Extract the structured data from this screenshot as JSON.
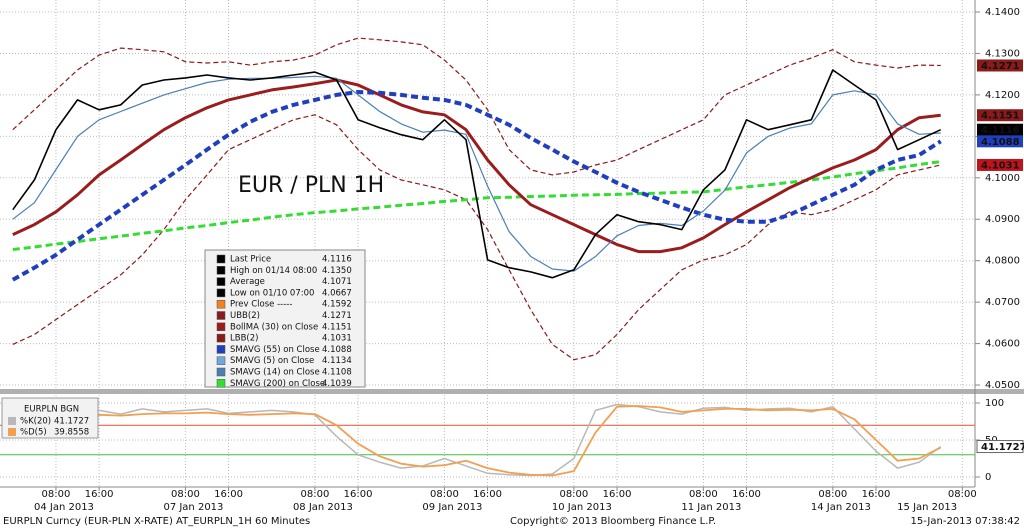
{
  "chart_data": [
    {
      "type": "line",
      "annotation": "EUR / PLN 1H",
      "annotation_color": "#e0201c",
      "categories": [
        null,
        null,
        null,
        null,
        null,
        null,
        null,
        null,
        null,
        null,
        null,
        null,
        null,
        null,
        null,
        null,
        null,
        null,
        null,
        null,
        null,
        null,
        null,
        null,
        null,
        null,
        null,
        null,
        null,
        null,
        null,
        null,
        null,
        null,
        null,
        null,
        null,
        null,
        null,
        null,
        null,
        null,
        null,
        null
      ],
      "series": [
        {
          "color": "#8b1a1a",
          "dash": true,
          "width": 1.2,
          "values": [
            4.1116,
            4.1164,
            4.1212,
            4.126,
            4.1296,
            4.1313,
            4.1309,
            4.1304,
            4.128,
            4.1277,
            4.128,
            4.1272,
            4.128,
            4.1284,
            4.1296,
            4.1321,
            4.1337,
            4.1333,
            4.1328,
            4.1321,
            4.1284,
            4.1236,
            4.1164,
            4.1068,
            4.1019,
            4.1007,
            4.1014,
            4.1031,
            4.1043,
            4.1068,
            4.1092,
            4.1116,
            4.114,
            4.12,
            4.1224,
            4.1248,
            4.1272,
            4.1289,
            4.1309,
            4.128,
            4.1272,
            4.1265,
            4.1272,
            4.1271
          ]
        },
        {
          "color": "#8b1a1a",
          "dash": true,
          "width": 1.2,
          "values": [
            4.0598,
            4.0622,
            4.0658,
            4.0694,
            4.073,
            4.0766,
            4.0814,
            4.0875,
            4.0947,
            4.1007,
            4.1068,
            4.1092,
            4.1116,
            4.114,
            4.1152,
            4.1128,
            4.1068,
            4.1019,
            4.0995,
            4.0983,
            4.0971,
            4.0947,
            4.0875,
            4.0778,
            4.0682,
            4.0598,
            4.0561,
            4.0573,
            4.0622,
            4.0682,
            4.073,
            4.0778,
            4.0802,
            4.0814,
            4.0839,
            4.0887,
            4.0918,
            4.0911,
            4.0923,
            4.0947,
            4.0971,
            4.1007,
            4.1019,
            4.1031
          ]
        },
        {
          "color": "#33dd33",
          "dash": true,
          "width": 3,
          "values": [
            4.0827,
            4.0833,
            4.084,
            4.0846,
            4.0853,
            4.0859,
            4.0866,
            4.0872,
            4.0879,
            4.0885,
            4.0892,
            4.0898,
            4.0905,
            4.0911,
            4.0916,
            4.092,
            4.0925,
            4.0929,
            4.0934,
            4.0938,
            4.0943,
            4.0947,
            4.0952,
            4.0953,
            4.0955,
            4.0956,
            4.0958,
            4.0959,
            4.096,
            4.0962,
            4.0963,
            4.0965,
            4.0966,
            4.0972,
            4.0978,
            4.0983,
            4.0989,
            4.0995,
            4.1002,
            4.101,
            4.1017,
            4.1024,
            4.1032,
            4.1039
          ]
        },
        {
          "color": "#9b1c1c",
          "dash": false,
          "width": 3,
          "values": [
            4.0863,
            4.0887,
            4.0918,
            4.0959,
            4.1007,
            4.1043,
            4.108,
            4.1116,
            4.1145,
            4.1169,
            4.1188,
            4.12,
            4.1212,
            4.1219,
            4.1227,
            4.1236,
            4.1224,
            4.12,
            4.1176,
            4.1159,
            4.1152,
            4.1116,
            4.1043,
            4.0983,
            4.0935,
            4.0911,
            4.0887,
            4.0863,
            4.0839,
            4.0822,
            4.0822,
            4.0831,
            4.0855,
            4.0887,
            4.0918,
            4.0947,
            4.0976,
            4.1,
            4.1024,
            4.1043,
            4.1068,
            4.1116,
            4.1145,
            4.1151
          ]
        },
        {
          "color": "#1f3fbf",
          "dash": true,
          "width": 4,
          "values": [
            4.0754,
            4.0783,
            4.0814,
            4.0851,
            4.0887,
            4.0923,
            4.0959,
            4.0995,
            4.1031,
            4.1068,
            4.1104,
            4.1135,
            4.1159,
            4.1176,
            4.1188,
            4.12,
            4.1207,
            4.1205,
            4.12,
            4.1193,
            4.1188,
            4.1176,
            4.1152,
            4.1128,
            4.1096,
            4.1068,
            4.1039,
            4.1014,
            4.0988,
            4.0966,
            4.0947,
            4.0928,
            4.0911,
            4.0899,
            4.0894,
            4.0894,
            4.0911,
            4.0935,
            4.0959,
            4.0983,
            4.1019,
            4.1043,
            4.1055,
            4.1088
          ]
        },
        {
          "color": "#4a7fb5",
          "dash": false,
          "width": 1.2,
          "values": [
            4.09,
            4.094,
            4.102,
            4.11,
            4.114,
            4.116,
            4.118,
            4.12,
            4.1215,
            4.123,
            4.1238,
            4.124,
            4.124,
            4.1242,
            4.1245,
            4.124,
            4.12,
            4.116,
            4.113,
            4.111,
            4.1115,
            4.1105,
            4.098,
            4.087,
            4.081,
            4.078,
            4.0775,
            4.081,
            4.086,
            4.0885,
            4.089,
            4.0885,
            4.092,
            4.097,
            4.106,
            4.11,
            4.112,
            4.113,
            4.12,
            4.121,
            4.12,
            4.113,
            4.1105,
            4.1108
          ]
        },
        {
          "color": "#000000",
          "dash": false,
          "width": 1.6,
          "values": [
            4.0923,
            4.0995,
            4.1116,
            4.1188,
            4.1164,
            4.1176,
            4.1224,
            4.1236,
            4.1241,
            4.1248,
            4.1241,
            4.1236,
            4.1241,
            4.1248,
            4.1255,
            4.1236,
            4.114,
            4.1121,
            4.1104,
            4.1092,
            4.114,
            4.1092,
            4.0802,
            4.0783,
            4.0773,
            4.0759,
            4.0778,
            4.0863,
            4.0911,
            4.0894,
            4.0887,
            4.0875,
            4.0971,
            4.1019,
            4.114,
            4.1116,
            4.1128,
            4.114,
            4.126,
            4.1224,
            4.1188,
            4.1068,
            4.1092,
            4.1116
          ]
        }
      ],
      "ylim": [
        4.0488,
        4.1429
      ],
      "yticks": [
        {
          "value": 4.14,
          "label": "4.1400"
        },
        {
          "value": 4.13,
          "label": "4.1300"
        },
        {
          "value": 4.12,
          "label": "4.1200"
        },
        {
          "value": 4.11,
          "label": "4.1100"
        },
        {
          "value": 4.1,
          "label": "4.1000"
        },
        {
          "value": 4.09,
          "label": "4.0900"
        },
        {
          "value": 4.08,
          "label": "4.0800"
        },
        {
          "value": 4.07,
          "label": "4.0700"
        },
        {
          "value": 4.06,
          "label": "4.0600"
        },
        {
          "value": 4.05,
          "label": "4.0500"
        }
      ],
      "xticks": [
        {
          "value": 2,
          "label": "08:00"
        },
        {
          "value": 4,
          "label": "16:00"
        },
        {
          "value": 8,
          "label": "08:00"
        },
        {
          "value": 10,
          "label": "16:00"
        },
        {
          "value": 14,
          "label": "08:00"
        },
        {
          "value": 16,
          "label": "16:00"
        },
        {
          "value": 20,
          "label": "08:00"
        },
        {
          "value": 22,
          "label": "16:00"
        },
        {
          "value": 26,
          "label": "08:00"
        },
        {
          "value": 28,
          "label": "16:00"
        },
        {
          "value": 32,
          "label": "08:00"
        },
        {
          "value": 34,
          "label": "16:00"
        },
        {
          "value": 38,
          "label": "08:00"
        },
        {
          "value": 40,
          "label": "16:00"
        },
        {
          "value": 44,
          "label": "08:00"
        }
      ],
      "date_ticks": [
        {
          "value": 2,
          "label": "04 Jan 2013"
        },
        {
          "value": 8,
          "label": "07 Jan 2013"
        },
        {
          "value": 14,
          "label": "08 Jan 2013"
        },
        {
          "value": 20,
          "label": "09 Jan 2013"
        },
        {
          "value": 26,
          "label": "10 Jan 2013"
        },
        {
          "value": 32,
          "label": "11 Jan 2013"
        },
        {
          "value": 38,
          "label": "14 Jan 2013"
        },
        {
          "value": 42,
          "label": "15 Jan 2013"
        }
      ],
      "grid": true,
      "price_tags": [
        {
          "value": 4.1271,
          "color": "#8b1a1a"
        },
        {
          "value": 4.1151,
          "color": "#8b1a1a"
        },
        {
          "value": 4.1116,
          "color": "#000000"
        },
        {
          "value": 4.1088,
          "color": "#1f3fbf"
        },
        {
          "value": 4.1031,
          "color": "#c0141c"
        }
      ],
      "legend": [
        {
          "label": "Last Price",
          "value": "4.1116",
          "color": "#000000"
        },
        {
          "label": "High on 01/14 08:00",
          "value": "4.1350",
          "color": "#000000"
        },
        {
          "label": "Average",
          "value": "4.1071",
          "color": "#000000"
        },
        {
          "label": "Low on 01/10 07:00",
          "value": "4.0667",
          "color": "#000000"
        },
        {
          "label": "Prev Close -----",
          "value": "4.1592",
          "color": "#f08020"
        },
        {
          "label": "UBB(2)",
          "value": "4.1271",
          "color": "#8b1a1a"
        },
        {
          "label": "BollMA (30) on Close",
          "value": "4.1151",
          "color": "#9b1c1c"
        },
        {
          "label": "LBB(2)",
          "value": "4.1031",
          "color": "#8b1a1a"
        },
        {
          "label": "SMAVG (55) on Close",
          "value": "4.1088",
          "color": "#1f3fbf"
        },
        {
          "label": "SMAVG (5) on Close",
          "value": "4.1134",
          "color": "#6fa8dc"
        },
        {
          "label": "SMAVG (14) on Close",
          "value": "4.1108",
          "color": "#4a7fb5"
        },
        {
          "label": "SMAVG (200) on Close",
          "value": "4.1039",
          "color": "#33dd33"
        }
      ]
    },
    {
      "type": "line",
      "categories": [
        null,
        null,
        null,
        null,
        null,
        null,
        null,
        null,
        null,
        null,
        null,
        null,
        null,
        null,
        null,
        null,
        null,
        null,
        null,
        null,
        null,
        null,
        null,
        null,
        null,
        null,
        null,
        null,
        null,
        null,
        null,
        null,
        null,
        null,
        null,
        null,
        null,
        null,
        null,
        null,
        null,
        null,
        null,
        null
      ],
      "series": [
        {
          "color": "#b8b8b8",
          "width": 1.5,
          "values": [
            80,
            85,
            88,
            86,
            90,
            85,
            92,
            88,
            90,
            92,
            86,
            88,
            90,
            88,
            84,
            55,
            30,
            20,
            12,
            15,
            25,
            15,
            5,
            3,
            2,
            4,
            25,
            90,
            98,
            95,
            88,
            85,
            93,
            94,
            90,
            92,
            93,
            88,
            95,
            65,
            35,
            12,
            20,
            41
          ]
        },
        {
          "color": "#f0a050",
          "width": 1.8,
          "values": [
            75,
            78,
            80,
            82,
            84,
            83,
            85,
            86,
            86,
            87,
            85,
            84,
            85,
            86,
            85,
            70,
            45,
            28,
            18,
            14,
            16,
            22,
            12,
            6,
            3,
            2,
            8,
            60,
            95,
            96,
            94,
            88,
            90,
            92,
            92,
            90,
            91,
            90,
            92,
            78,
            50,
            22,
            25,
            40
          ]
        }
      ],
      "ylim": [
        -13.5,
        110.8
      ],
      "yticks": [
        100,
        50,
        0
      ],
      "hlines": [
        {
          "value": 70,
          "color": "#e05030"
        },
        {
          "value": 30,
          "color": "#40c040"
        }
      ],
      "price_tags": [
        {
          "value": 41.1727,
          "color": "#ffffff"
        }
      ],
      "legend_title": "EURPLN BGN",
      "legend": [
        {
          "label": "%K(20)",
          "value": "41.1727",
          "color": "#b8b8b8"
        },
        {
          "label": "%D(5)",
          "value": "39.8558",
          "color": "#f0a050"
        }
      ]
    }
  ],
  "footer": {
    "left": "EURPLN Curncy (EUR-PLN X-RATE) AT_EURPLN_1H  60 Minutes",
    "center": "Copyright© 2013 Bloomberg Finance L.P.",
    "right": "15-Jan-2013 07:38:42"
  }
}
